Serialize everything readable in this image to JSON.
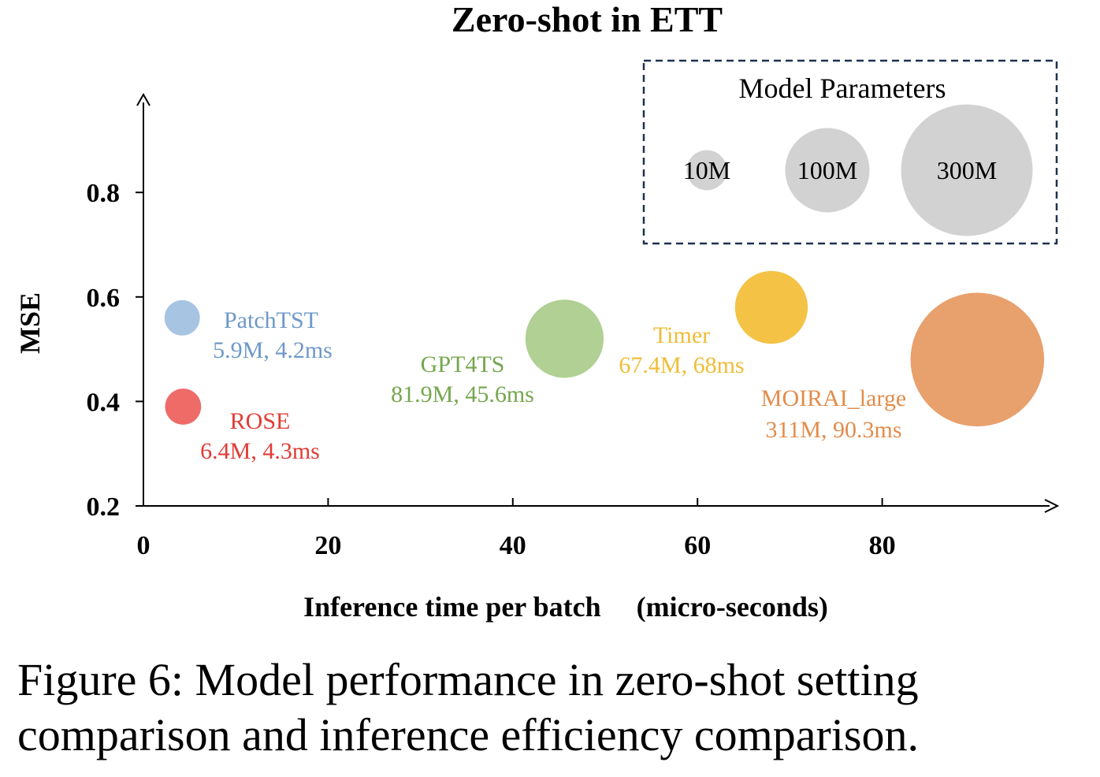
{
  "chart_data": {
    "type": "scatter",
    "title": "Zero-shot in ETT",
    "xlabel": "Inference time per batch 　(micro-seconds)",
    "ylabel": "MSE",
    "xlim": [
      0,
      99
    ],
    "ylim": [
      0.2,
      0.96
    ],
    "xticks": [
      0,
      20,
      40,
      60,
      80
    ],
    "yticks": [
      0.2,
      0.4,
      0.6,
      0.8
    ],
    "grid": false,
    "size_encoding": "Model Parameters",
    "points": [
      {
        "name": "PatchTST",
        "detail": "5.9M, 4.2ms",
        "x": 4.2,
        "y": 0.56,
        "params_m": 5.9,
        "color": "#a7c4e2",
        "label_color": "#6e98c8"
      },
      {
        "name": "ROSE",
        "detail": "6.4M, 4.3ms",
        "x": 4.3,
        "y": 0.39,
        "params_m": 6.4,
        "color": "#ee6b68",
        "label_color": "#e23b35"
      },
      {
        "name": "GPT4TS",
        "detail": "81.9M, 45.6ms",
        "x": 45.6,
        "y": 0.52,
        "params_m": 81.9,
        "color": "#b1d094",
        "label_color": "#75a74e"
      },
      {
        "name": "Timer",
        "detail": "67.4M, 68ms",
        "x": 68,
        "y": 0.58,
        "params_m": 67.4,
        "color": "#f4c244",
        "label_color": "#f0bd38"
      },
      {
        "name": "MOIRAI_large",
        "detail": "311M, 90.3ms",
        "x": 90.3,
        "y": 0.48,
        "params_m": 311,
        "color": "#e8a06c",
        "label_color": "#e38c4b"
      }
    ],
    "legend": {
      "title": "Model Parameters",
      "position": "top-right",
      "items": [
        {
          "label": "10M",
          "params_m": 10
        },
        {
          "label": "100M",
          "params_m": 100
        },
        {
          "label": "300M",
          "params_m": 300
        }
      ],
      "color": "#d3d2d2",
      "border_color": "#1f3150"
    }
  },
  "caption": "Figure 6: Model performance in zero-shot setting comparison and inference efficiency comparison."
}
